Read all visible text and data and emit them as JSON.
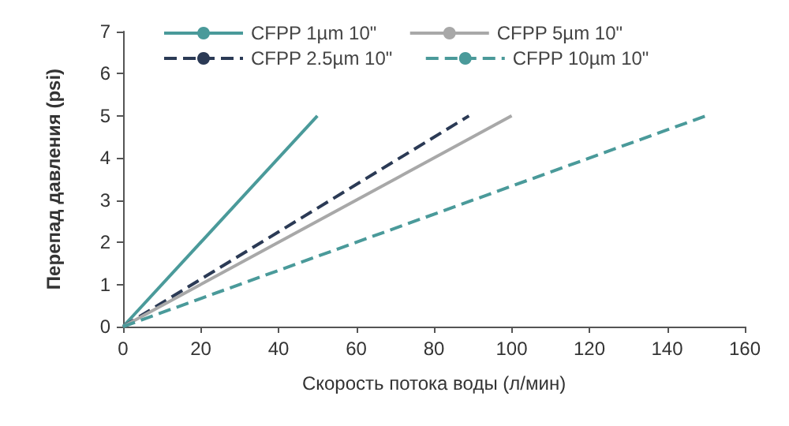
{
  "chart_data": {
    "type": "line",
    "xlabel": "Скорость потока воды (л/мин)",
    "ylabel": "Перепад давления (psi)",
    "xlim": [
      0,
      160
    ],
    "xticks": [
      0,
      20,
      40,
      60,
      80,
      100,
      120,
      140,
      160
    ],
    "ylim": [
      0,
      7
    ],
    "yticks": [
      0,
      1,
      2,
      3,
      4,
      5,
      6,
      7
    ],
    "grid": false,
    "legend": "top",
    "marker": "none",
    "series": [
      {
        "name": "CFPP 1µm 10\"",
        "color": "#4a9a9a",
        "line_style": "solid",
        "x": [
          0,
          50
        ],
        "values": [
          0,
          5
        ]
      },
      {
        "name": "CFPP 2.5µm 10\"",
        "color": "#2b3a55",
        "line_style": "dashed",
        "x": [
          0,
          89
        ],
        "values": [
          0,
          5
        ]
      },
      {
        "name": "CFPP 5µm 10\"",
        "color": "#a8a8a8",
        "line_style": "solid",
        "x": [
          0,
          100
        ],
        "values": [
          0,
          5
        ]
      },
      {
        "name": "CFPP 10µm 10\"",
        "color": "#4a9a9a",
        "line_style": "dashed",
        "x": [
          0,
          150
        ],
        "values": [
          0,
          5
        ]
      }
    ]
  }
}
